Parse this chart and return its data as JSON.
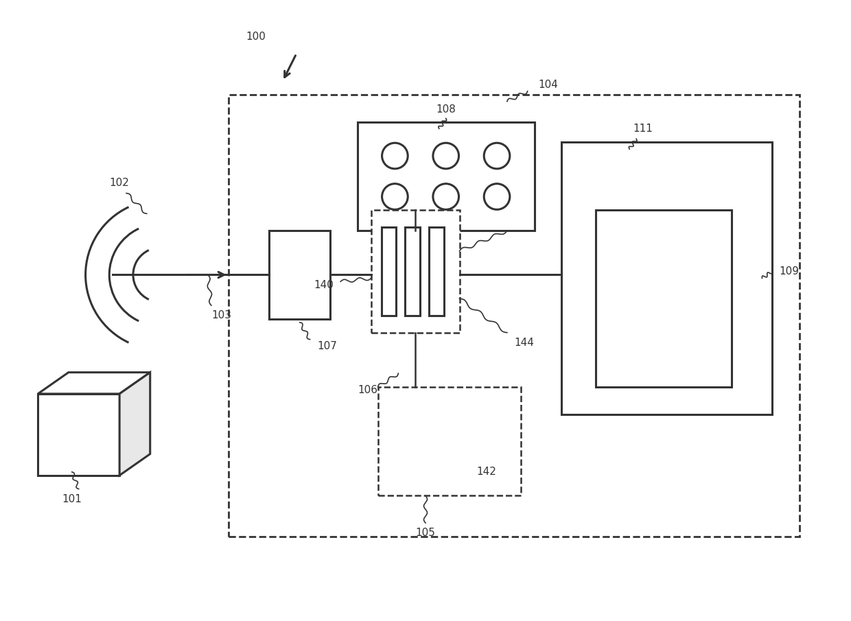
{
  "bg_color": "#ffffff",
  "line_color": "#333333",
  "fig_width": 12.4,
  "fig_height": 9.05,
  "dpi": 100
}
